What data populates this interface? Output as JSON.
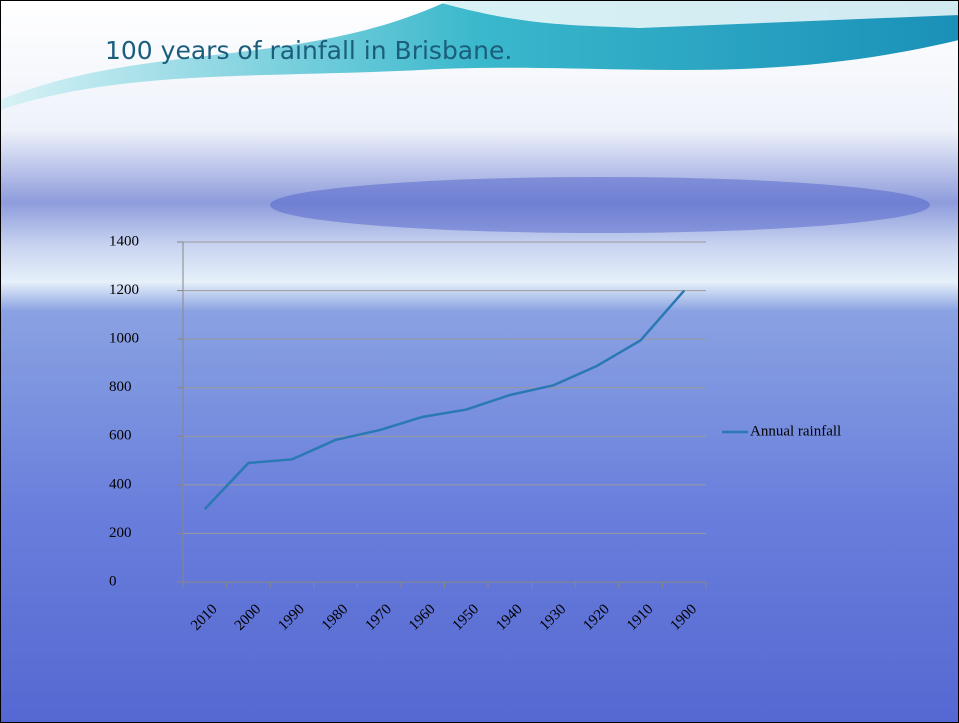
{
  "chart_data": {
    "type": "line",
    "title": "100 years of rainfall in Brisbane.",
    "categories": [
      "2010",
      "2000",
      "1990",
      "1980",
      "1970",
      "1960",
      "1950",
      "1940",
      "1930",
      "1920",
      "1910",
      "1900"
    ],
    "series": [
      {
        "name": "Annual rainfall",
        "color": "#2a78b4",
        "values": [
          300,
          490,
          505,
          585,
          625,
          680,
          710,
          770,
          810,
          890,
          995,
          1200
        ]
      }
    ],
    "ylim": [
      0,
      1400
    ],
    "yticks": [
      0,
      200,
      400,
      600,
      800,
      1000,
      1200,
      1400
    ],
    "grid": true,
    "legend": "right"
  }
}
